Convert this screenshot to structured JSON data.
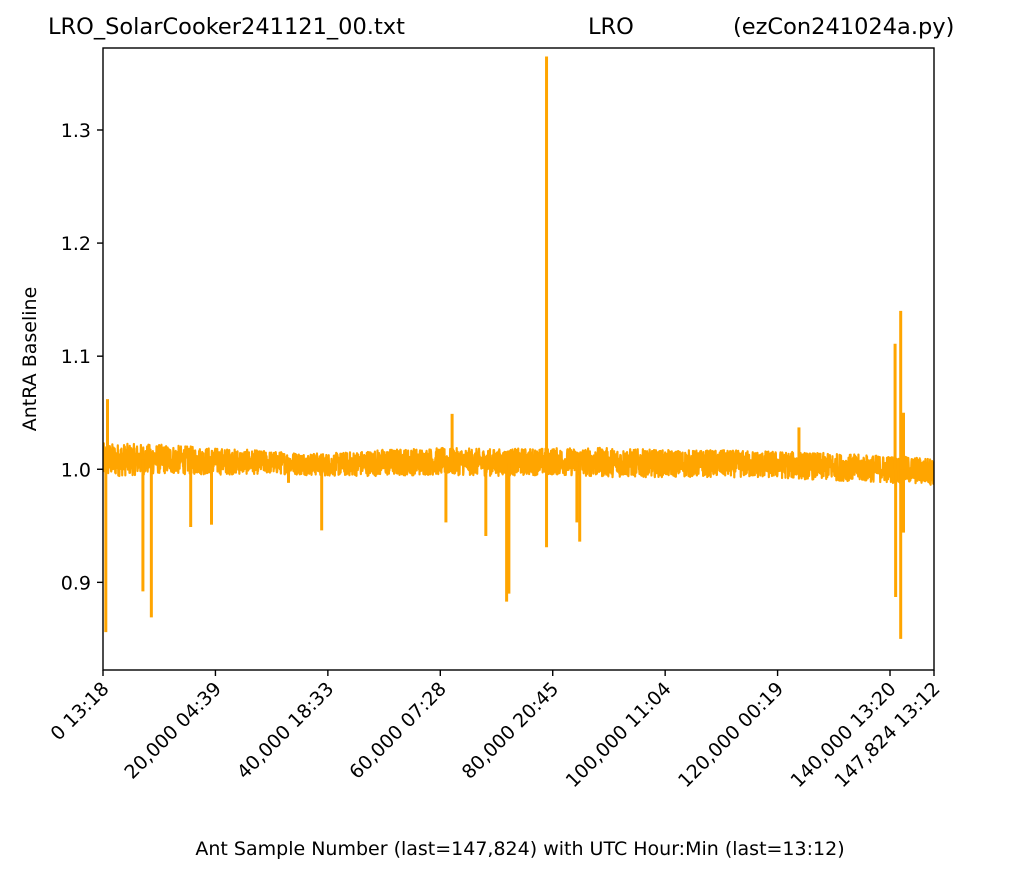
{
  "header": {
    "left": "LRO_SolarCooker241121_00.txt",
    "center": "LRO",
    "right": "(ezCon241024a.py)"
  },
  "chart_data": {
    "type": "line",
    "title": "",
    "xlabel": "Ant Sample Number (last=147,824) with UTC Hour:Min (last=13:12)",
    "ylabel": "AntRA Baseline",
    "xlim": [
      0,
      147824
    ],
    "ylim": [
      0.8225,
      1.3725
    ],
    "grid": false,
    "color": "#ffa500",
    "yticks": [
      0.9,
      1.0,
      1.1,
      1.2,
      1.3
    ],
    "ytick_labels": [
      "0.9",
      "1.0",
      "1.1",
      "1.2",
      "1.3"
    ],
    "xticks": [
      0,
      20000,
      40000,
      60000,
      80000,
      100000,
      120000,
      140000,
      147824
    ],
    "xtick_labels": [
      "0  13:18",
      "20,000  04:39",
      "40,000  18:33",
      "60,000  07:28",
      "80,000  20:45",
      "100,000  11:04",
      "120,000  00:19",
      "140,000  13:20",
      "147,824  13:12"
    ],
    "baseline": {
      "x": [
        0,
        10000,
        20000,
        30000,
        40000,
        50000,
        60000,
        70000,
        80000,
        90000,
        100000,
        110000,
        120000,
        130000,
        140000,
        147824
      ],
      "center": [
        1.008,
        1.009,
        1.007,
        1.006,
        1.004,
        1.006,
        1.007,
        1.006,
        1.007,
        1.006,
        1.005,
        1.005,
        1.004,
        1.002,
        1.0,
        0.998
      ],
      "halfwidth": [
        0.015,
        0.013,
        0.012,
        0.01,
        0.01,
        0.012,
        0.012,
        0.012,
        0.012,
        0.013,
        0.012,
        0.012,
        0.012,
        0.012,
        0.012,
        0.012
      ]
    },
    "spikes": [
      {
        "x": 500,
        "y": 0.856
      },
      {
        "x": 800,
        "y": 1.062
      },
      {
        "x": 7100,
        "y": 0.892
      },
      {
        "x": 8600,
        "y": 0.869
      },
      {
        "x": 15600,
        "y": 0.949
      },
      {
        "x": 19300,
        "y": 0.951
      },
      {
        "x": 33000,
        "y": 0.988
      },
      {
        "x": 38900,
        "y": 0.946
      },
      {
        "x": 61000,
        "y": 0.953
      },
      {
        "x": 62100,
        "y": 1.049
      },
      {
        "x": 68100,
        "y": 0.941
      },
      {
        "x": 71800,
        "y": 0.883
      },
      {
        "x": 72200,
        "y": 0.89
      },
      {
        "x": 78900,
        "y": 0.931
      },
      {
        "x": 78900,
        "y": 1.365
      },
      {
        "x": 84300,
        "y": 0.953
      },
      {
        "x": 84800,
        "y": 0.936
      },
      {
        "x": 123800,
        "y": 1.037
      },
      {
        "x": 140900,
        "y": 1.111
      },
      {
        "x": 141000,
        "y": 0.887
      },
      {
        "x": 141900,
        "y": 1.14
      },
      {
        "x": 141900,
        "y": 0.85
      },
      {
        "x": 142400,
        "y": 1.05
      },
      {
        "x": 142400,
        "y": 0.944
      }
    ]
  }
}
